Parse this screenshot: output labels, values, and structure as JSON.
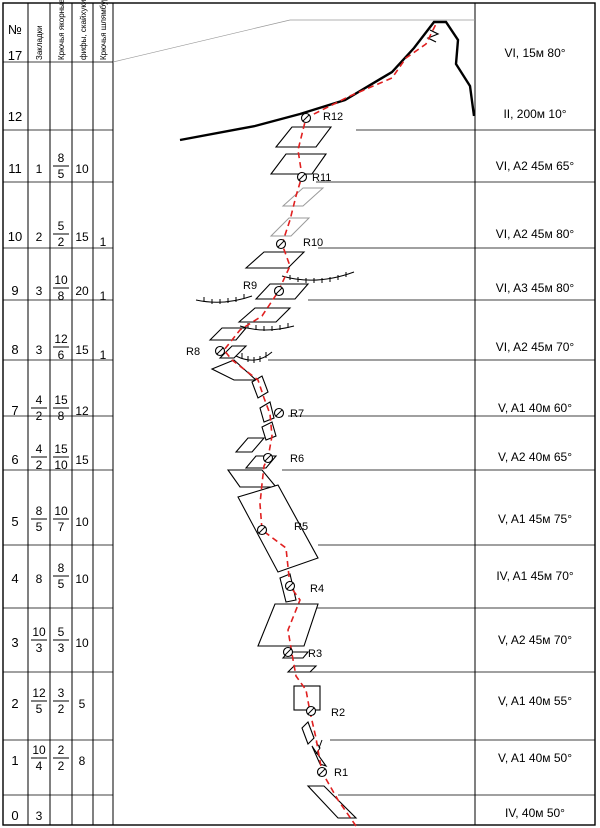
{
  "header": {
    "no": "№",
    "col_zakladki": "Закладки",
    "col_kryuchya_yakornye": "Крючья якорные",
    "col_fify": "фифы, скайхуки",
    "col_kryuchya_shlyamburnye": "Крючья шлямбурные"
  },
  "rows": [
    {
      "num": "17",
      "zakl": "",
      "yak_top": "",
      "yak_bot": "",
      "fify": "",
      "shl": "",
      "desc": "VI,  15м  80°"
    },
    {
      "num": "12",
      "zakl": "",
      "yak_top": "",
      "yak_bot": "",
      "fify": "",
      "shl": "",
      "desc": "II,  200м  10°"
    },
    {
      "num": "11",
      "zakl": "1",
      "yak_top": "8",
      "yak_bot": "5",
      "fify": "10",
      "shl": "",
      "desc": "VI, A2  45м  65°"
    },
    {
      "num": "10",
      "zakl": "2",
      "yak_top": "5",
      "yak_bot": "2",
      "fify": "15",
      "shl": "1",
      "desc": "VI, A2  45м  80°"
    },
    {
      "num": "9",
      "zakl": "3",
      "yak_top": "10",
      "yak_bot": "8",
      "fify": "20",
      "shl": "1",
      "desc": "VI, A3  45м  80°"
    },
    {
      "num": "8",
      "zakl": "3",
      "yak_top": "12",
      "yak_bot": "6",
      "fify": "15",
      "shl": "1",
      "desc": "VI, A2  45м  70°"
    },
    {
      "num": "7",
      "zakl_top": "4",
      "zakl_bot": "2",
      "yak_top": "15",
      "yak_bot": "8",
      "fify": "12",
      "shl": "",
      "desc": "V, A1  40м  60°"
    },
    {
      "num": "6",
      "zakl_top": "4",
      "zakl_bot": "2",
      "yak_top": "15",
      "yak_bot": "10",
      "fify": "15",
      "shl": "",
      "desc": "V, A2  40м  65°"
    },
    {
      "num": "5",
      "zakl_top": "8",
      "zakl_bot": "5",
      "yak_top": "10",
      "yak_bot": "7",
      "fify": "10",
      "shl": "",
      "desc": "V, A1   45м  75°"
    },
    {
      "num": "4",
      "zakl": "8",
      "yak_top": "8",
      "yak_bot": "5",
      "fify": "10",
      "shl": "",
      "desc": "IV, A1   45м  70°"
    },
    {
      "num": "3",
      "zakl_top": "10",
      "zakl_bot": "3",
      "yak_top": "5",
      "yak_bot": "3",
      "fify": "10",
      "shl": "",
      "desc": "V, A2  45м  70°"
    },
    {
      "num": "2",
      "zakl_top": "12",
      "zakl_bot": "5",
      "yak_top": "3",
      "yak_bot": "2",
      "fify": "5",
      "shl": "",
      "desc": "V, A1  40м  55°"
    },
    {
      "num": "1",
      "zakl_top": "10",
      "zakl_bot": "4",
      "yak_top": "2",
      "yak_bot": "2",
      "fify": "8",
      "shl": "",
      "desc": "V, A1  40м  50°"
    },
    {
      "num": "0",
      "zakl": "3",
      "yak_top": "",
      "yak_bot": "",
      "fify": "",
      "shl": "",
      "desc": "IV,   40м  50°"
    }
  ],
  "belays": [
    "R1",
    "R2",
    "R3",
    "R4",
    "R5",
    "R6",
    "R7",
    "R8",
    "R9",
    "R10",
    "R11",
    "R12"
  ],
  "colors": {
    "route": "#e02020",
    "line": "#000000",
    "faint": "#9a9a9a"
  }
}
